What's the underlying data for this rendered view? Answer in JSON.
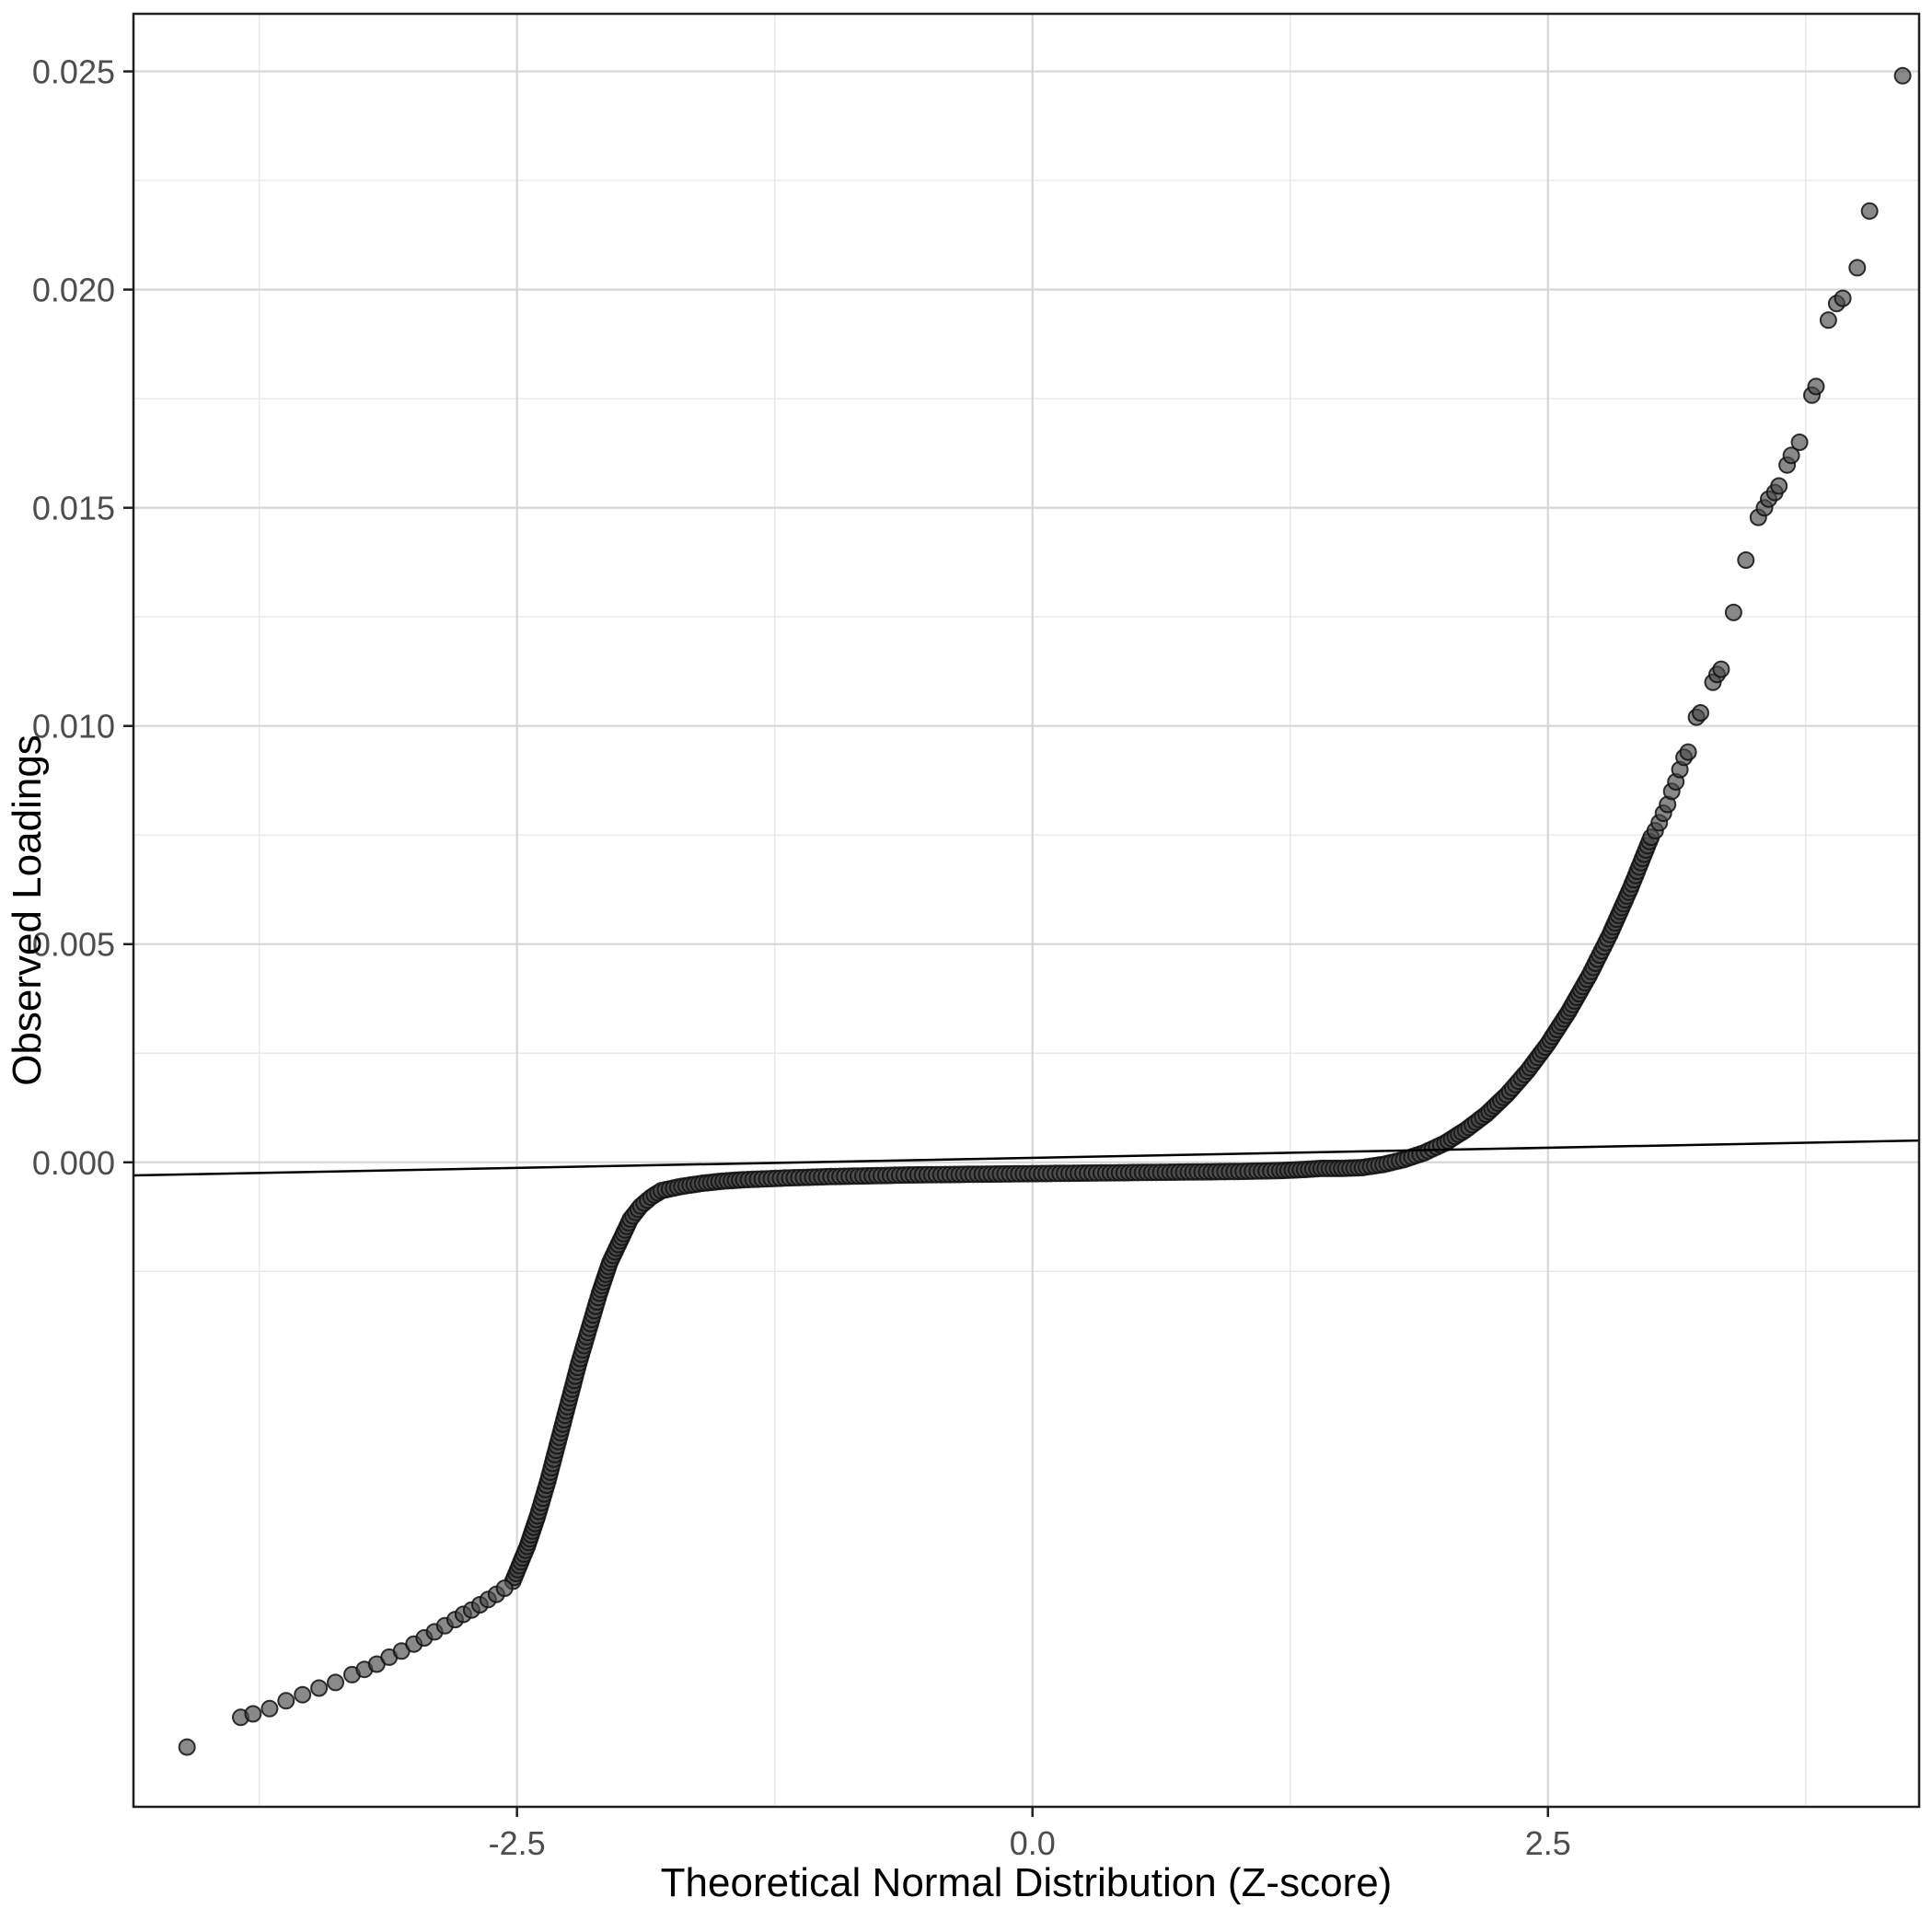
{
  "figure": {
    "title": "",
    "background_color": "#ffffff",
    "panel_border_color": "#1f1f1f",
    "major_grid_color": "#d6d6d6",
    "minor_grid_color": "#e9e9e9",
    "tick_label_color": "#4d4d4d",
    "axis_title_color": "#000000"
  },
  "chart_data": {
    "type": "scatter",
    "title": "",
    "xlabel": "Theoretical Normal Distribution (Z-score)",
    "ylabel": "Observed Loadings",
    "xlim": [
      -4.36,
      4.3
    ],
    "ylim": [
      -0.01477,
      0.02632
    ],
    "x_ticks": [
      -2.5,
      0.0,
      2.5
    ],
    "x_tick_labels": [
      "-2.5",
      "0.0",
      "2.5"
    ],
    "y_ticks": [
      0.0,
      0.005,
      0.01,
      0.015,
      0.02,
      0.025
    ],
    "y_tick_labels": [
      "0.000",
      "0.005",
      "0.010",
      "0.015",
      "0.020",
      "0.025"
    ],
    "grid": "major+minor",
    "legend": "none",
    "reference_line": {
      "x1": -4.36,
      "y1": -0.0003,
      "x2": 4.3,
      "y2": 0.0005,
      "color": "#000000"
    },
    "point_style": {
      "fill": "#4a4a4a",
      "stroke": "#111111",
      "opacity": 0.65,
      "radius": 8.5
    },
    "qq_curve_anchors": [
      [
        -2.52,
        -0.0096
      ],
      [
        -2.45,
        -0.0088
      ],
      [
        -2.4,
        -0.0081
      ],
      [
        -2.35,
        -0.0073
      ],
      [
        -2.3,
        -0.0064
      ],
      [
        -2.25,
        -0.0055
      ],
      [
        -2.2,
        -0.0046
      ],
      [
        -2.15,
        -0.0038
      ],
      [
        -2.1,
        -0.003
      ],
      [
        -2.05,
        -0.0023
      ],
      [
        -2.0,
        -0.0018
      ],
      [
        -1.95,
        -0.0013
      ],
      [
        -1.9,
        -0.001
      ],
      [
        -1.85,
        -0.0008
      ],
      [
        -1.8,
        -0.00065
      ],
      [
        -1.7,
        -0.00055
      ],
      [
        -1.6,
        -0.00048
      ],
      [
        -1.5,
        -0.00043
      ],
      [
        -1.4,
        -0.0004
      ],
      [
        -1.2,
        -0.00036
      ],
      [
        -1.0,
        -0.00033
      ],
      [
        -0.8,
        -0.00031
      ],
      [
        -0.6,
        -0.00029
      ],
      [
        -0.4,
        -0.00028
      ],
      [
        -0.2,
        -0.00027
      ],
      [
        0.0,
        -0.00026
      ],
      [
        0.2,
        -0.00025
      ],
      [
        0.4,
        -0.00024
      ],
      [
        0.6,
        -0.00023
      ],
      [
        0.8,
        -0.00022
      ],
      [
        1.0,
        -0.00021
      ],
      [
        1.2,
        -0.00019
      ],
      [
        1.3,
        -0.00017
      ],
      [
        1.4,
        -0.00014
      ],
      [
        1.5,
        -0.00014
      ],
      [
        1.6,
        -0.00012
      ],
      [
        1.7,
        -5e-05
      ],
      [
        1.8,
        6e-05
      ],
      [
        1.9,
        0.00022
      ],
      [
        2.0,
        0.00044
      ],
      [
        2.1,
        0.00074
      ],
      [
        2.2,
        0.0011
      ],
      [
        2.3,
        0.00155
      ],
      [
        2.4,
        0.00209
      ],
      [
        2.5,
        0.00272
      ],
      [
        2.6,
        0.00345
      ],
      [
        2.7,
        0.00428
      ],
      [
        2.8,
        0.00522
      ],
      [
        2.9,
        0.00628
      ],
      [
        3.0,
        0.00745
      ]
    ],
    "left_tail_points": [
      [
        -4.1,
        -0.0134
      ],
      [
        -3.84,
        -0.01272
      ],
      [
        -3.78,
        -0.01264
      ],
      [
        -3.7,
        -0.01252
      ],
      [
        -3.62,
        -0.01234
      ],
      [
        -3.54,
        -0.0122
      ],
      [
        -3.46,
        -0.01205
      ],
      [
        -3.38,
        -0.01192
      ],
      [
        -3.3,
        -0.01174
      ],
      [
        -3.24,
        -0.01162
      ],
      [
        -3.18,
        -0.0115
      ],
      [
        -3.12,
        -0.01134
      ],
      [
        -3.06,
        -0.0112
      ],
      [
        -3.0,
        -0.01104
      ],
      [
        -2.95,
        -0.0109
      ],
      [
        -2.9,
        -0.01076
      ],
      [
        -2.85,
        -0.01062
      ],
      [
        -2.8,
        -0.01048
      ],
      [
        -2.76,
        -0.01036
      ],
      [
        -2.72,
        -0.01026
      ],
      [
        -2.68,
        -0.01014
      ],
      [
        -2.64,
        -0.01002
      ],
      [
        -2.6,
        -0.0099
      ],
      [
        -2.56,
        -0.00976
      ]
    ],
    "right_tail_points": [
      [
        3.02,
        0.0076
      ],
      [
        3.04,
        0.00778
      ],
      [
        3.06,
        0.008
      ],
      [
        3.08,
        0.0082
      ],
      [
        3.1,
        0.0085
      ],
      [
        3.12,
        0.00872
      ],
      [
        3.14,
        0.009
      ],
      [
        3.16,
        0.00928
      ],
      [
        3.18,
        0.0094
      ],
      [
        3.22,
        0.0102
      ],
      [
        3.24,
        0.0103
      ],
      [
        3.3,
        0.011
      ],
      [
        3.32,
        0.01118
      ],
      [
        3.34,
        0.0113
      ],
      [
        3.4,
        0.0126
      ],
      [
        3.46,
        0.0138
      ],
      [
        3.52,
        0.01478
      ],
      [
        3.55,
        0.015
      ],
      [
        3.57,
        0.0152
      ],
      [
        3.6,
        0.01535
      ],
      [
        3.62,
        0.0155
      ],
      [
        3.66,
        0.01598
      ],
      [
        3.68,
        0.0162
      ],
      [
        3.72,
        0.0165
      ],
      [
        3.78,
        0.01758
      ],
      [
        3.8,
        0.01778
      ],
      [
        3.86,
        0.0193
      ],
      [
        3.9,
        0.01968
      ],
      [
        3.93,
        0.0198
      ],
      [
        4.0,
        0.0205
      ],
      [
        4.06,
        0.0218
      ],
      [
        4.22,
        0.0249
      ]
    ]
  }
}
